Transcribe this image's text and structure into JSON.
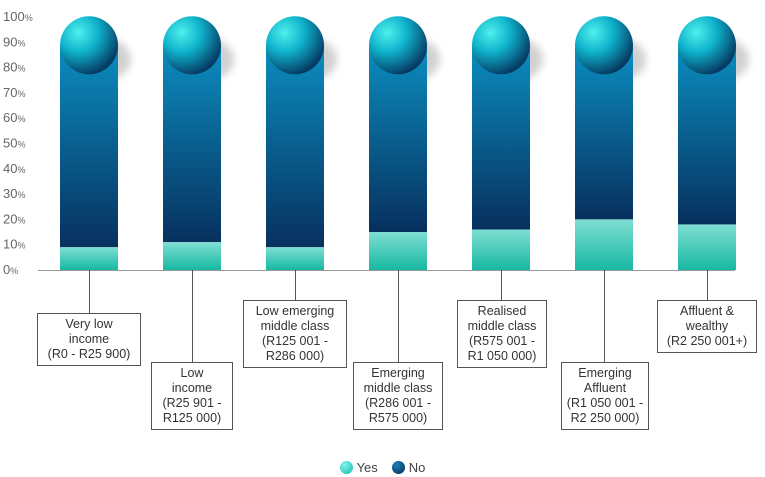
{
  "chart_data": {
    "type": "bar",
    "stacked": true,
    "categories": [
      "Very low\nincome\n(R0 - R25 900)",
      "Low\nincome\n(R25 901 -\nR125 000)",
      "Low emerging\nmiddle class\n(R125 001 -\nR286 000)",
      "Emerging\nmiddle class\n(R286 001 -\nR575 000)",
      "Realised\nmiddle class\n(R575 001 -\nR1 050 000)",
      "Emerging\nAffluent\n(R1 050 001 -\nR2 250 000)",
      "Affluent &\nwealthy\n(R2 250 001+)"
    ],
    "series": [
      {
        "name": "Yes",
        "values": [
          9,
          11,
          9,
          15,
          16,
          20,
          18
        ]
      },
      {
        "name": "No",
        "values": [
          91,
          89,
          91,
          85,
          84,
          80,
          82
        ]
      }
    ],
    "yticks": [
      "0",
      "10",
      "20",
      "30",
      "40",
      "50",
      "60",
      "70",
      "80",
      "90",
      "100"
    ],
    "ytick_unit": "%",
    "ylim": [
      0,
      100
    ],
    "legend": {
      "position": "bottom-center",
      "items": [
        "Yes",
        "No"
      ]
    },
    "grid": false,
    "colors": {
      "yes_top": "#7fded2",
      "yes_bottom": "#16b8a2",
      "no_top": "#0b8ec0",
      "no_bottom": "#07305e",
      "axis": "#999999"
    }
  }
}
